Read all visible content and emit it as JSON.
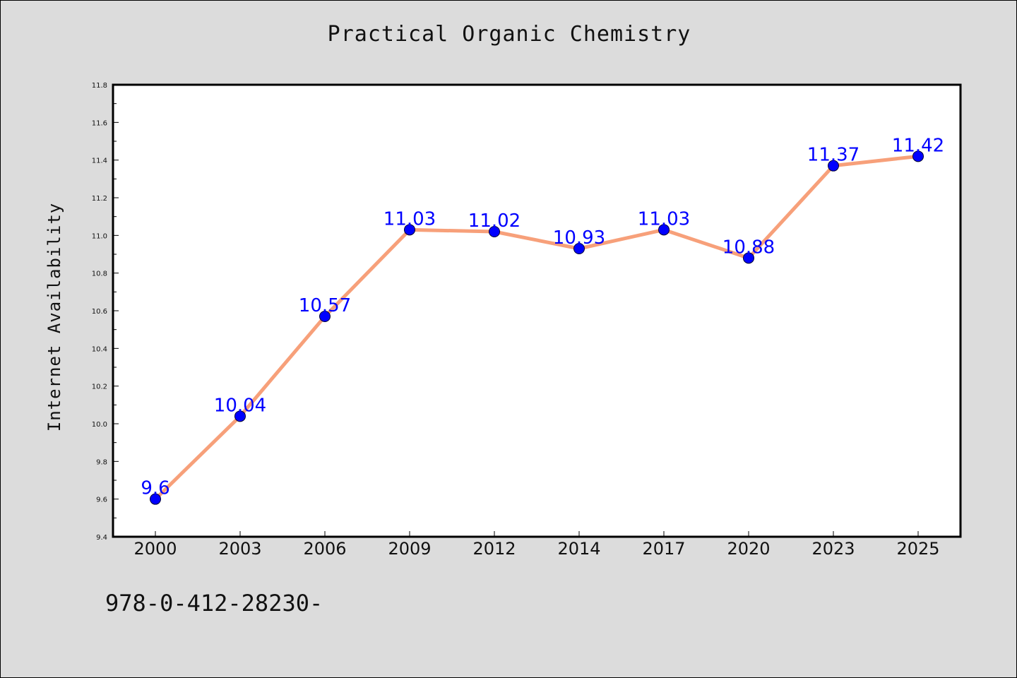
{
  "chart_data": {
    "type": "line",
    "title": "Practical Organic Chemistry",
    "xlabel": "",
    "ylabel": "Internet Availability",
    "categories": [
      "2000",
      "2003",
      "2006",
      "2009",
      "2012",
      "2014",
      "2017",
      "2020",
      "2023",
      "2025"
    ],
    "series": [
      {
        "values": [
          9.6,
          10.04,
          10.57,
          11.03,
          11.02,
          10.93,
          11.03,
          10.88,
          11.37,
          11.42
        ],
        "line_color": "#f7a07a",
        "marker_color": "#0000ff"
      }
    ],
    "data_labels": [
      "9.6",
      "10.04",
      "10.57",
      "11.03",
      "11.02",
      "10.93",
      "11.03",
      "10.88",
      "11.37",
      "11.42"
    ],
    "ylim": [
      9.4,
      11.8
    ],
    "y_ticks": [
      "9.4",
      "9.6",
      "9.8",
      "10.0",
      "10.2",
      "10.4",
      "10.6",
      "10.8",
      "11.0",
      "11.2",
      "11.4",
      "11.6",
      "11.8"
    ],
    "grid": false,
    "legend": "none",
    "label_color": "#0000ff"
  },
  "footer": {
    "isbn": "978-0-412-28230-"
  }
}
